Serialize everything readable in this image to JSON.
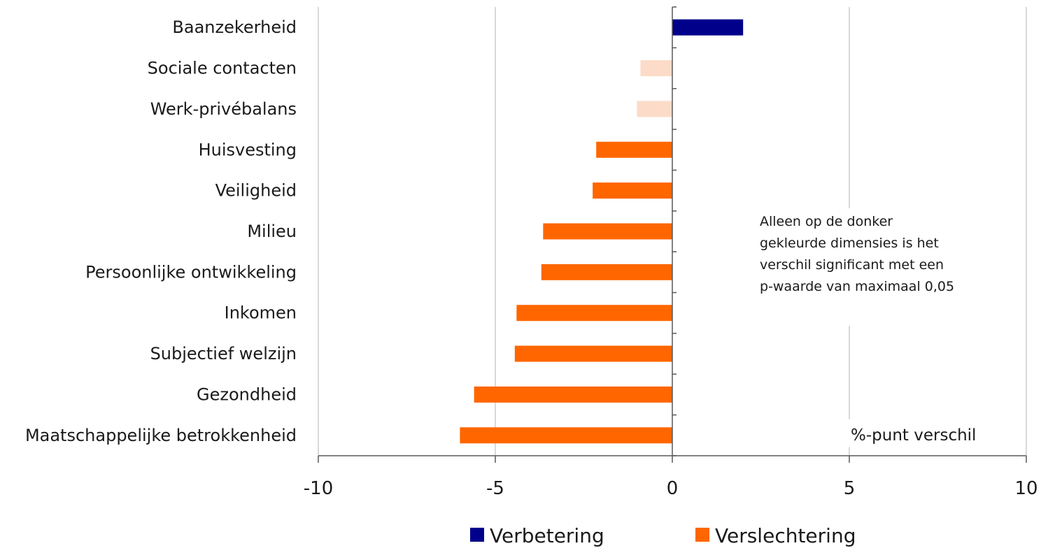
{
  "chart_data": {
    "type": "bar",
    "orientation": "horizontal",
    "categories": [
      "Baanzekerheid",
      "Sociale contacten",
      "Werk-privébalans",
      "Huisvesting",
      "Veiligheid",
      "Milieu",
      "Persoonlijke ontwikkeling",
      "Inkomen",
      "Subjectief welzijn",
      "Gezondheid",
      "Maatschappelijke betrokkenheid"
    ],
    "values": [
      2.0,
      -0.9,
      -1.0,
      -2.15,
      -2.25,
      -3.65,
      -3.7,
      -4.4,
      -4.45,
      -5.6,
      -6.0
    ],
    "significant": [
      true,
      false,
      false,
      true,
      true,
      true,
      true,
      true,
      true,
      true,
      true
    ],
    "colors": {
      "improvement": "#00008b",
      "deterioration": "#ff6600",
      "not_significant": "#fcdcc8"
    },
    "xlim": [
      -10,
      10
    ],
    "x_ticks": [
      "-10",
      "-5",
      "0",
      "5",
      "10"
    ],
    "x_tick_values": [
      -10,
      -5,
      0,
      5,
      10
    ],
    "gridlines": true,
    "unit_label": "%-punt verschil",
    "annotation": [
      "Alleen op de donker",
      "gekleurde dimensies is het",
      "verschil significant met een",
      "p-waarde van maximaal 0,05"
    ],
    "legend": {
      "position": "bottom",
      "items": [
        {
          "label": "Verbetering",
          "color": "#00008b"
        },
        {
          "label": "Verslechtering",
          "color": "#ff6600"
        }
      ]
    }
  }
}
